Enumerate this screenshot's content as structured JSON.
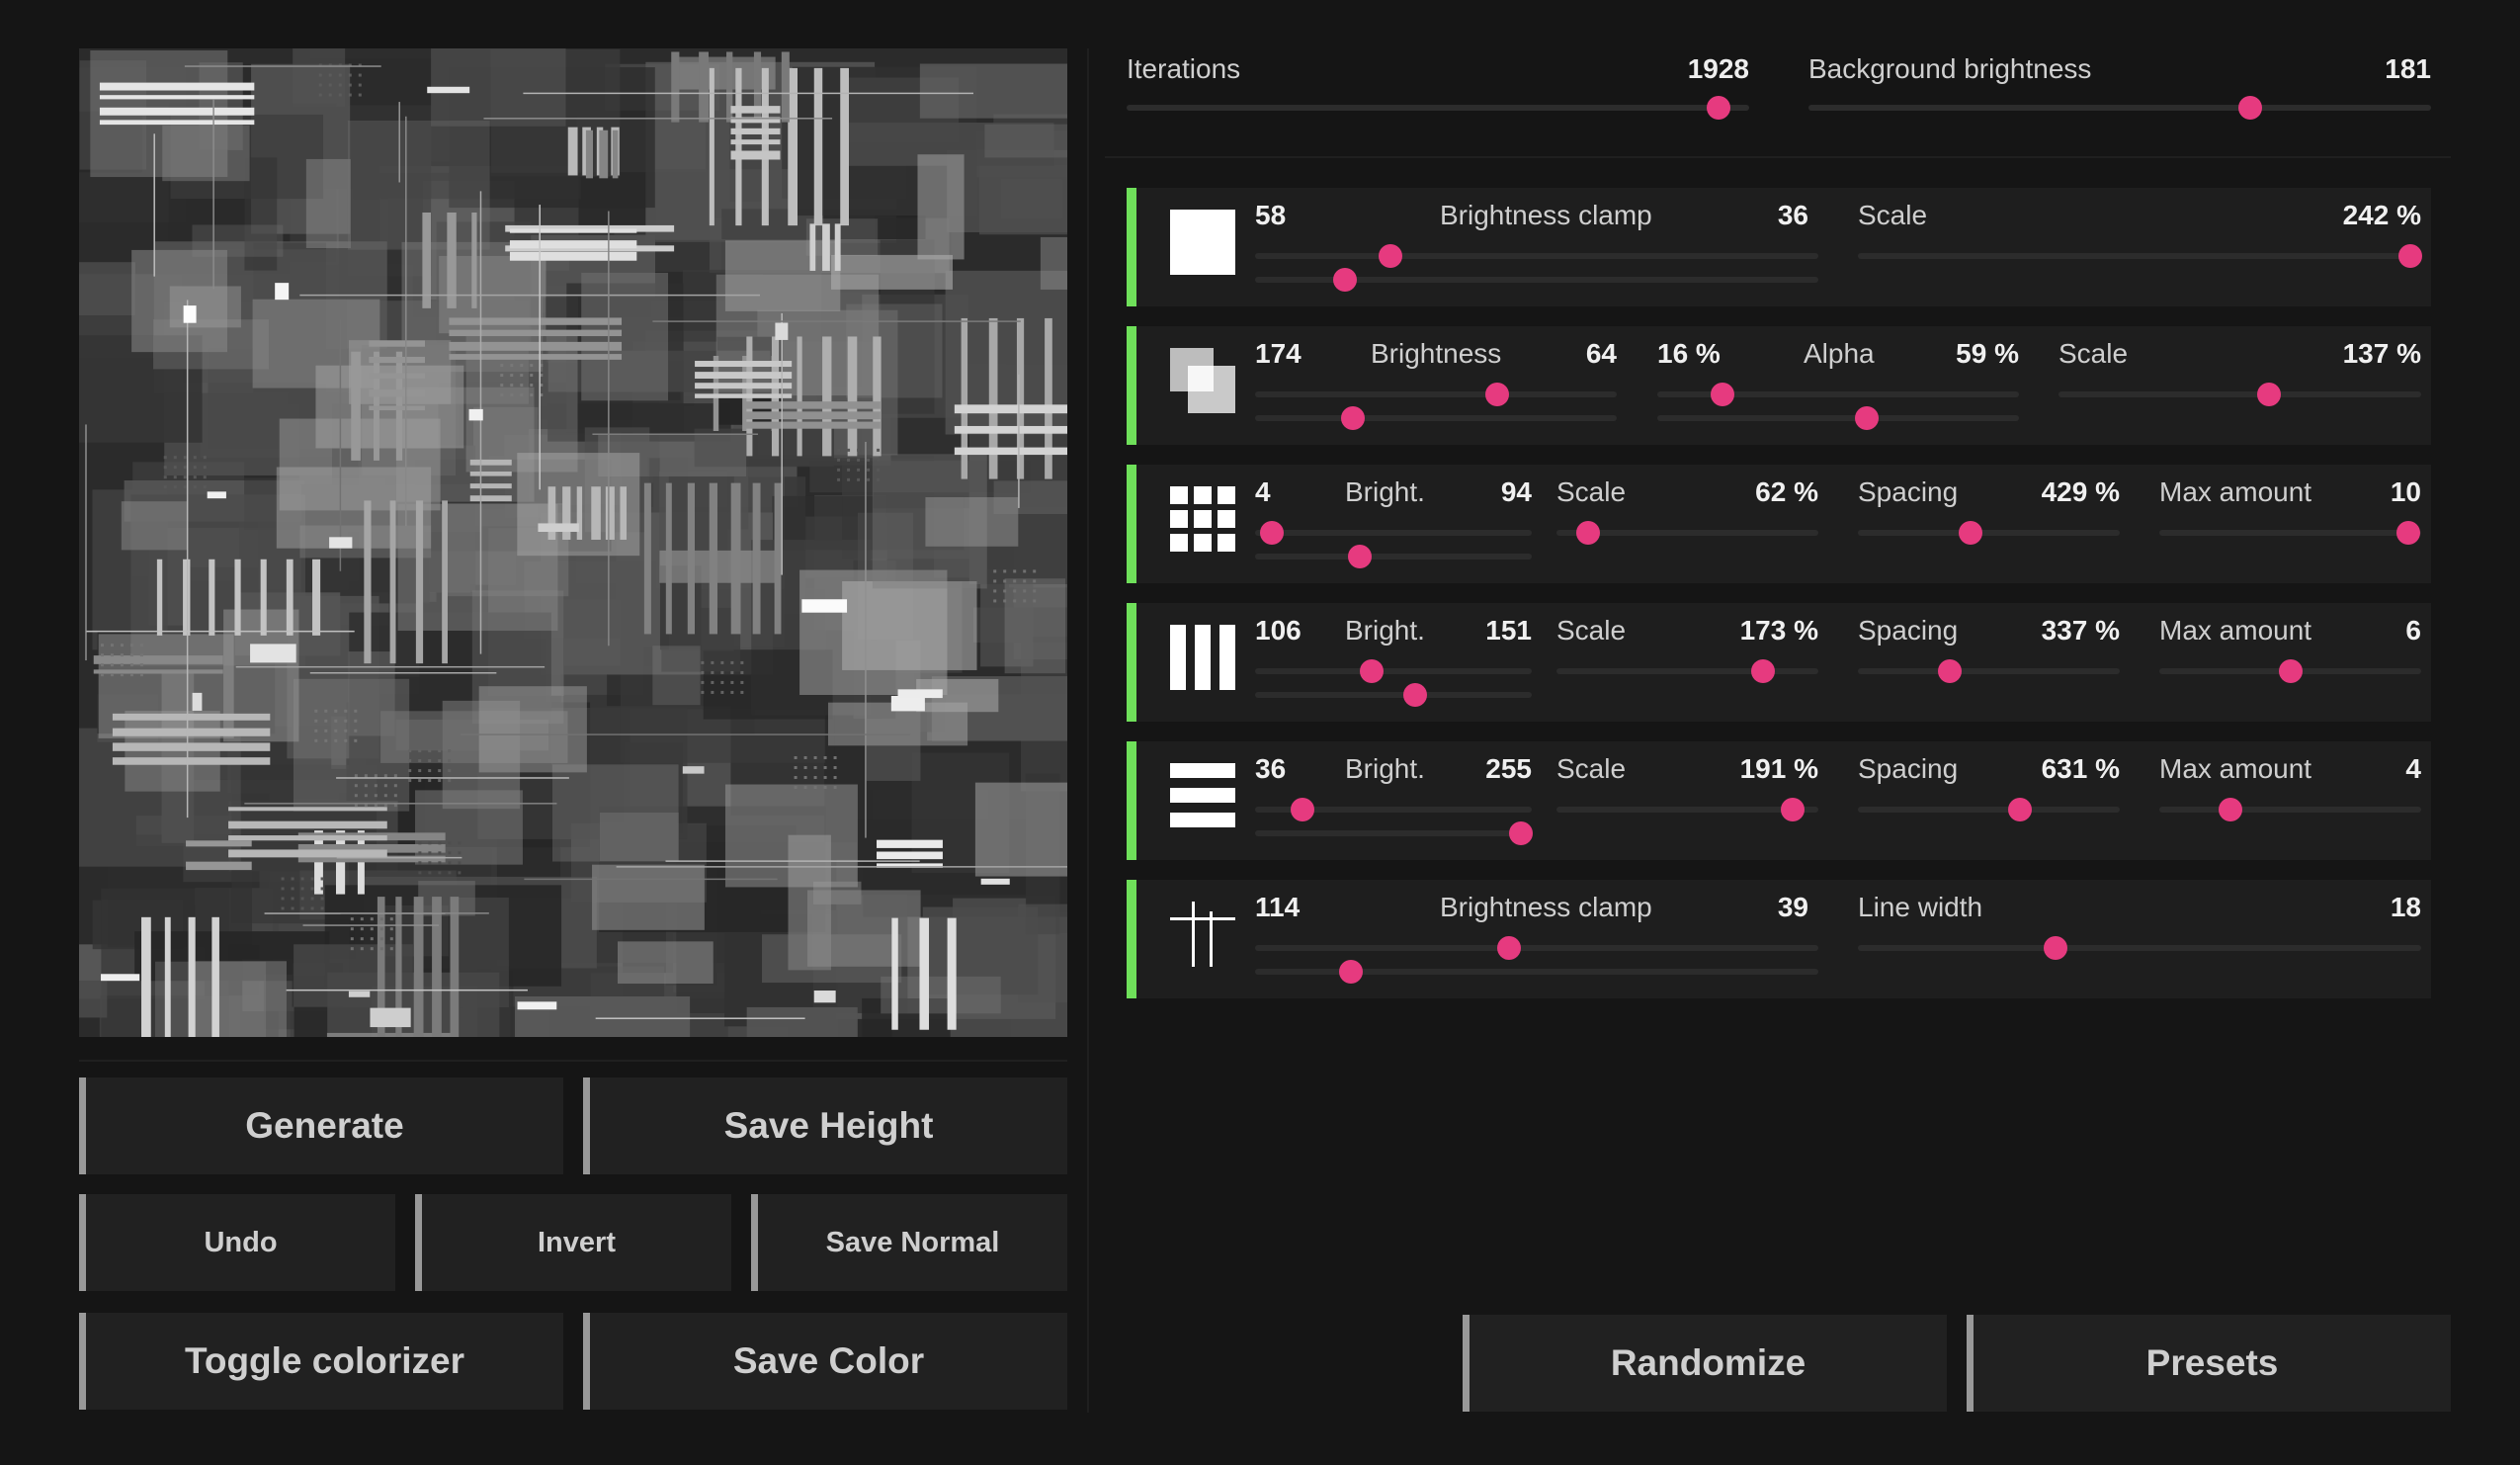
{
  "buttons": {
    "generate": "Generate",
    "save_height": "Save Height",
    "undo": "Undo",
    "invert": "Invert",
    "save_normal": "Save Normal",
    "toggle_colorizer": "Toggle colorizer",
    "save_color": "Save Color",
    "randomize": "Randomize",
    "presets": "Presets"
  },
  "global": {
    "iterations": {
      "label": "Iterations",
      "value": "1928",
      "fraction": 0.95
    },
    "background_brightness": {
      "label": "Background brightness",
      "value": "181",
      "fraction": 0.71
    }
  },
  "rows": [
    {
      "icon": "filled-square-icon",
      "count": "58",
      "count_fraction": 0.16,
      "brightness": {
        "label": "Brightness clamp",
        "value": "36",
        "fraction": 0.24
      },
      "scale": {
        "label": "Scale",
        "value": "242 %",
        "fraction": 0.98
      }
    },
    {
      "icon": "overlapping-squares-icon",
      "count": "174",
      "count_fraction": 0.27,
      "brightness": {
        "label": "Brightness",
        "value": "64",
        "fraction": 0.67
      },
      "alpha_min": "16 %",
      "alpha_min_fraction": 0.18,
      "alpha": {
        "label": "Alpha",
        "value": "59 %",
        "fraction": 0.58
      },
      "scale": {
        "label": "Scale",
        "value": "137 %",
        "fraction": 0.58
      }
    },
    {
      "icon": "dot-grid-icon",
      "count": "4",
      "count_fraction": 0.38,
      "brightness": {
        "label": "Bright.",
        "value": "94",
        "fraction": 0.06
      },
      "scale": {
        "label": "Scale",
        "value": "62 %",
        "fraction": 0.12
      },
      "spacing": {
        "label": "Spacing",
        "value": "429 %",
        "fraction": 0.43
      },
      "max_amount": {
        "label": "Max amount",
        "value": "10",
        "fraction": 0.95
      }
    },
    {
      "icon": "vertical-bars-icon",
      "count": "106",
      "count_fraction": 0.58,
      "brightness": {
        "label": "Bright.",
        "value": "151",
        "fraction": 0.42
      },
      "scale": {
        "label": "Scale",
        "value": "173 %",
        "fraction": 0.79
      },
      "spacing": {
        "label": "Spacing",
        "value": "337 %",
        "fraction": 0.35
      },
      "max_amount": {
        "label": "Max amount",
        "value": "6",
        "fraction": 0.5
      }
    },
    {
      "icon": "horizontal-bars-icon",
      "count": "36",
      "count_fraction": 0.96,
      "brightness": {
        "label": "Bright.",
        "value": "255",
        "fraction": 0.17
      },
      "scale": {
        "label": "Scale",
        "value": "191 %",
        "fraction": 0.9
      },
      "spacing": {
        "label": "Spacing",
        "value": "631 %",
        "fraction": 0.62
      },
      "max_amount": {
        "label": "Max amount",
        "value": "4",
        "fraction": 0.27
      }
    },
    {
      "icon": "crossed-lines-icon",
      "count": "114",
      "count_fraction": 0.17,
      "brightness": {
        "label": "Brightness clamp",
        "value": "39",
        "fraction": 0.45
      },
      "line_width": {
        "label": "Line width",
        "value": "18",
        "fraction": 0.35
      }
    }
  ],
  "colors": {
    "accent_knob": "#e63a7f",
    "row_indicator": "#6fe05a",
    "background": "#151515"
  }
}
